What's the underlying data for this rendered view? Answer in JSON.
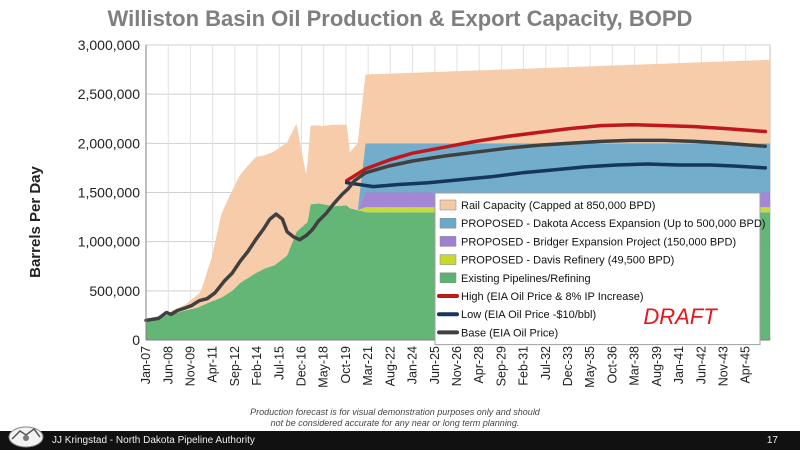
{
  "title": "Williston Basin Oil Production & Export Capacity, BOPD",
  "note_line1": "Production forecast is for visual demonstration purposes only and should",
  "note_line2": "not be considered accurate for any near or long term planning.",
  "footer_text": "JJ Kringstad - North Dakota Pipeline Authority",
  "page_number": "17",
  "chart_data": {
    "type": "area",
    "title": "Williston Basin Oil Production & Export Capacity, BOPD",
    "ylabel": "Barrels Per Day",
    "xlabel": "",
    "ylim": [
      0,
      3000000
    ],
    "yticks": [
      0,
      500000,
      1000000,
      1500000,
      2000000,
      2500000,
      3000000
    ],
    "ytick_labels": [
      "0",
      "500,000",
      "1,000,000",
      "1,500,000",
      "2,000,000",
      "2,500,000",
      "3,000,000"
    ],
    "xlim": [
      2007.0,
      2046.8
    ],
    "xticks": [
      {
        "t": 2007.0,
        "label": "Jan-07"
      },
      {
        "t": 2008.42,
        "label": "Jun-08"
      },
      {
        "t": 2009.83,
        "label": "Nov-09"
      },
      {
        "t": 2011.25,
        "label": "Apr-11"
      },
      {
        "t": 2012.67,
        "label": "Sep-12"
      },
      {
        "t": 2014.08,
        "label": "Feb-14"
      },
      {
        "t": 2015.5,
        "label": "Jul-15"
      },
      {
        "t": 2016.92,
        "label": "Dec-16"
      },
      {
        "t": 2018.33,
        "label": "May-18"
      },
      {
        "t": 2019.75,
        "label": "Oct-19"
      },
      {
        "t": 2021.17,
        "label": "Mar-21"
      },
      {
        "t": 2022.58,
        "label": "Aug-22"
      },
      {
        "t": 2024.0,
        "label": "Jan-24"
      },
      {
        "t": 2025.42,
        "label": "Jun-25"
      },
      {
        "t": 2026.83,
        "label": "Nov-26"
      },
      {
        "t": 2028.25,
        "label": "Apr-28"
      },
      {
        "t": 2029.67,
        "label": "Sep-29"
      },
      {
        "t": 2031.08,
        "label": "Feb-31"
      },
      {
        "t": 2032.5,
        "label": "Jul-32"
      },
      {
        "t": 2033.92,
        "label": "Dec-33"
      },
      {
        "t": 2035.33,
        "label": "May-35"
      },
      {
        "t": 2036.75,
        "label": "Oct-36"
      },
      {
        "t": 2038.17,
        "label": "Mar-38"
      },
      {
        "t": 2039.58,
        "label": "Aug-39"
      },
      {
        "t": 2041.0,
        "label": "Jan-41"
      },
      {
        "t": 2042.42,
        "label": "Jun-42"
      },
      {
        "t": 2043.83,
        "label": "Nov-43"
      },
      {
        "t": 2045.25,
        "label": "Apr-45"
      }
    ],
    "grid": true,
    "legend_position": "center-right",
    "stacked_areas": [
      {
        "name": "Existing Pipelines/Refining",
        "color": "#5cb270",
        "x": [
          2007.0,
          2008.3,
          2009.5,
          2010.3,
          2011.0,
          2011.8,
          2012.5,
          2013.0,
          2013.6,
          2014.0,
          2014.6,
          2015.2,
          2016.0,
          2016.6,
          2017.3,
          2017.5,
          2018.0,
          2019.0,
          2019.8,
          2020.0,
          2020.5,
          2021.0,
          2046.8
        ],
        "values": [
          200000,
          250000,
          300000,
          330000,
          380000,
          430000,
          500000,
          580000,
          640000,
          680000,
          730000,
          760000,
          860000,
          1100000,
          1200000,
          1380000,
          1390000,
          1360000,
          1370000,
          1340000,
          1320000,
          1300000,
          1300000
        ]
      },
      {
        "name": "PROPOSED - Davis Refinery (49,500 BPD)",
        "color": "#c6d930",
        "x": [
          2007.0,
          2020.5,
          2021.0,
          2046.8
        ],
        "values": [
          0,
          0,
          49500,
          49500
        ]
      },
      {
        "name": "PROPOSED - Bridger Expansion Project (150,000 BPD)",
        "color": "#9f7fd3",
        "x": [
          2007.0,
          2020.5,
          2021.0,
          2046.8
        ],
        "values": [
          0,
          0,
          150000,
          150000
        ]
      },
      {
        "name": "PROPOSED - Dakota Access Expansion (Up to 500,000 BPD)",
        "color": "#6aa9c9",
        "x": [
          2007.0,
          2020.5,
          2021.0,
          2046.8
        ],
        "values": [
          0,
          0,
          500000,
          500000
        ]
      },
      {
        "name": "Rail Capacity (Capped at 850,000 BPD)",
        "color": "#f5c9a6",
        "x": [
          2007.0,
          2008.3,
          2009.5,
          2010.5,
          2011.2,
          2011.8,
          2012.4,
          2013.0,
          2013.6,
          2014.0,
          2014.6,
          2015.2,
          2016.0,
          2016.6,
          2017.2,
          2017.5,
          2018.2,
          2019.0,
          2019.8,
          2020.0,
          2020.5,
          2021.0,
          2046.8
        ],
        "values": [
          0,
          20000,
          60000,
          150000,
          450000,
          850000,
          1000000,
          1100000,
          1150000,
          1180000,
          1150000,
          1160000,
          1150000,
          1100000,
          500000,
          800000,
          790000,
          830000,
          820000,
          570000,
          680000,
          700000,
          850000
        ]
      }
    ],
    "lines": [
      {
        "name": "High (EIA Oil Price & 8% IP Increase)",
        "color": "#c0171c",
        "x": [
          2019.8,
          2021.0,
          2022.5,
          2024.0,
          2026.0,
          2028.0,
          2030.0,
          2032.0,
          2034.0,
          2036.0,
          2038.0,
          2040.0,
          2042.0,
          2044.0,
          2046.5
        ],
        "values": [
          1620000,
          1740000,
          1830000,
          1900000,
          1960000,
          2020000,
          2070000,
          2110000,
          2150000,
          2180000,
          2190000,
          2180000,
          2170000,
          2150000,
          2120000
        ]
      },
      {
        "name": "Low (EIA Oil Price -$10/bbl)",
        "color": "#17365d",
        "x": [
          2019.8,
          2021.5,
          2023.0,
          2025.0,
          2027.0,
          2029.0,
          2031.0,
          2033.0,
          2035.0,
          2037.0,
          2039.0,
          2041.0,
          2043.0,
          2044.5,
          2046.5
        ],
        "values": [
          1600000,
          1560000,
          1580000,
          1600000,
          1630000,
          1660000,
          1700000,
          1730000,
          1760000,
          1780000,
          1790000,
          1780000,
          1780000,
          1770000,
          1750000
        ]
      },
      {
        "name": "Base (EIA Oil Price)",
        "color": "#404040",
        "x": [
          2007.0,
          2007.8,
          2008.3,
          2008.6,
          2009.0,
          2009.4,
          2009.9,
          2010.4,
          2010.9,
          2011.4,
          2012.0,
          2012.5,
          2013.0,
          2013.5,
          2014.0,
          2014.5,
          2014.9,
          2015.3,
          2015.7,
          2016.0,
          2016.4,
          2016.8,
          2017.2,
          2017.6,
          2018.0,
          2018.5,
          2019.0,
          2019.5,
          2019.9,
          2020.3,
          2021.0,
          2022.5,
          2024.0,
          2026.0,
          2028.0,
          2030.0,
          2032.0,
          2034.0,
          2036.0,
          2038.0,
          2040.0,
          2042.0,
          2044.0,
          2046.5
        ],
        "values": [
          200000,
          220000,
          280000,
          260000,
          300000,
          320000,
          350000,
          400000,
          420000,
          480000,
          600000,
          680000,
          800000,
          900000,
          1020000,
          1130000,
          1230000,
          1280000,
          1230000,
          1100000,
          1050000,
          1020000,
          1060000,
          1120000,
          1210000,
          1290000,
          1390000,
          1480000,
          1540000,
          1620000,
          1700000,
          1770000,
          1820000,
          1870000,
          1910000,
          1950000,
          1980000,
          2000000,
          2020000,
          2030000,
          2030000,
          2020000,
          2000000,
          1970000
        ]
      }
    ],
    "annotation": "DRAFT",
    "legend": [
      {
        "label": "Rail Capacity (Capped at 850,000 BPD)",
        "color": "#f5c9a6",
        "kind": "patch"
      },
      {
        "label": "PROPOSED - Dakota Access Expansion (Up to 500,000 BPD)",
        "color": "#6aa9c9",
        "kind": "patch"
      },
      {
        "label": "PROPOSED - Bridger Expansion Project (150,000 BPD)",
        "color": "#9f7fd3",
        "kind": "patch"
      },
      {
        "label": "PROPOSED - Davis Refinery (49,500 BPD)",
        "color": "#c6d930",
        "kind": "patch"
      },
      {
        "label": "Existing Pipelines/Refining",
        "color": "#5cb270",
        "kind": "patch"
      },
      {
        "label": "High (EIA Oil Price & 8% IP Increase)",
        "color": "#c0171c",
        "kind": "line"
      },
      {
        "label": "Low (EIA Oil Price -$10/bbl)",
        "color": "#17365d",
        "kind": "line"
      },
      {
        "label": "Base (EIA Oil Price)",
        "color": "#404040",
        "kind": "line"
      }
    ]
  }
}
